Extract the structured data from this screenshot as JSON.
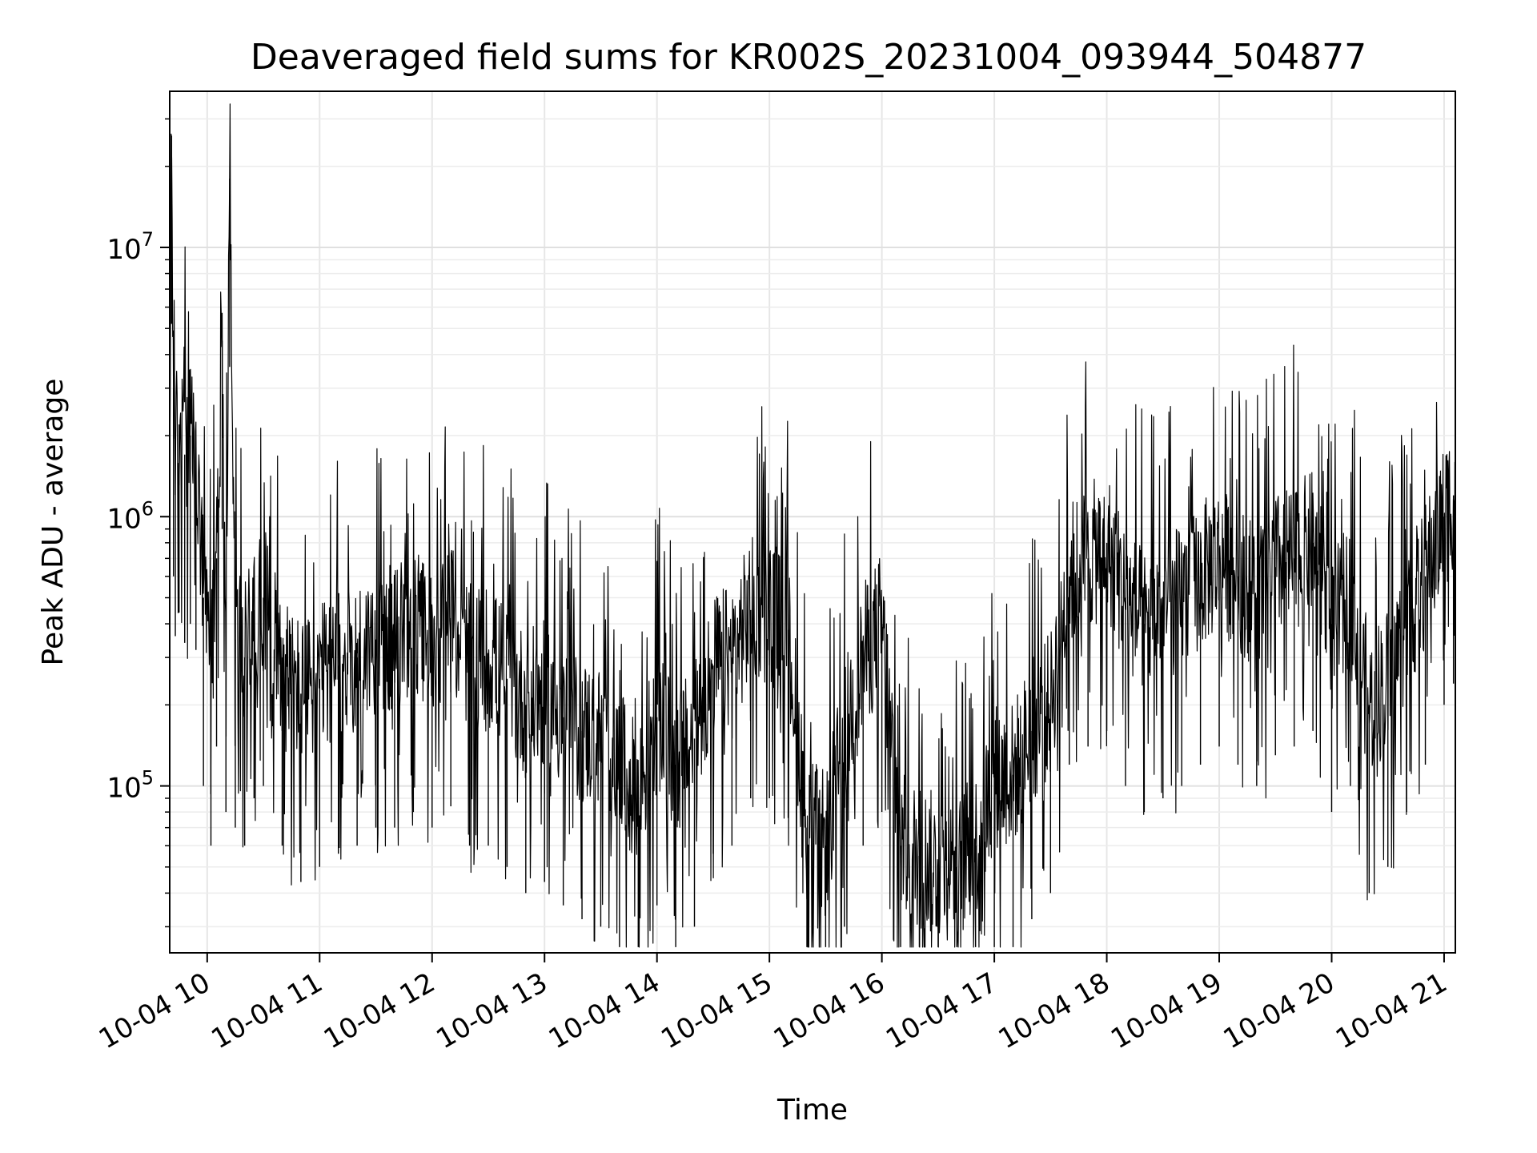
{
  "chart_data": {
    "type": "line",
    "title": "Deaveraged field sums for KR002S_20231004_093944_504877",
    "xlabel": "Time",
    "ylabel": "Peak ADU - average",
    "yscale": "log",
    "ylim": [
      24000,
      38000000
    ],
    "xlim": [
      "2023-10-04 09:40",
      "2023-10-04 21:06"
    ],
    "grid": true,
    "line_color": "#000000",
    "x_ticks": [
      "10-04 10",
      "10-04 11",
      "10-04 12",
      "10-04 13",
      "10-04 14",
      "10-04 15",
      "10-04 16",
      "10-04 17",
      "10-04 18",
      "10-04 19",
      "10-04 20",
      "10-04 21"
    ],
    "y_ticks": [
      {
        "value": 100000,
        "base": "10",
        "exp": "5"
      },
      {
        "value": 1000000,
        "base": "10",
        "exp": "6"
      },
      {
        "value": 10000000,
        "base": "10",
        "exp": "7"
      }
    ],
    "series": [
      {
        "x": [
          "2023-10-04 09:40",
          "2023-10-04 09:41",
          "2023-10-04 09:42",
          "2023-10-04 09:43",
          "2023-10-04 09:45",
          "2023-10-04 09:48",
          "2023-10-04 09:51",
          "2023-10-04 09:54",
          "2023-10-04 09:58",
          "2023-10-04 10:02",
          "2023-10-04 10:05",
          "2023-10-04 10:08",
          "2023-10-04 10:10",
          "2023-10-04 10:12",
          "2023-10-04 10:15",
          "2023-10-04 10:20",
          "2023-10-04 10:25",
          "2023-10-04 10:30",
          "2023-10-04 10:40",
          "2023-10-04 10:50",
          "2023-10-04 11:00",
          "2023-10-04 11:10",
          "2023-10-04 11:20",
          "2023-10-04 11:30",
          "2023-10-04 11:40",
          "2023-10-04 11:50",
          "2023-10-04 12:00",
          "2023-10-04 12:10",
          "2023-10-04 12:20",
          "2023-10-04 12:30",
          "2023-10-04 12:40",
          "2023-10-04 12:50",
          "2023-10-04 13:00",
          "2023-10-04 13:10",
          "2023-10-04 13:20",
          "2023-10-04 13:30",
          "2023-10-04 13:40",
          "2023-10-04 13:50",
          "2023-10-04 14:00",
          "2023-10-04 14:10",
          "2023-10-04 14:20",
          "2023-10-04 14:30",
          "2023-10-04 14:40",
          "2023-10-04 14:50",
          "2023-10-04 15:00",
          "2023-10-04 15:10",
          "2023-10-04 15:20",
          "2023-10-04 15:30",
          "2023-10-04 15:40",
          "2023-10-04 15:50",
          "2023-10-04 16:00",
          "2023-10-04 16:10",
          "2023-10-04 16:20",
          "2023-10-04 16:30",
          "2023-10-04 16:40",
          "2023-10-04 16:50",
          "2023-10-04 17:00",
          "2023-10-04 17:10",
          "2023-10-04 17:20",
          "2023-10-04 17:30",
          "2023-10-04 17:40",
          "2023-10-04 17:50",
          "2023-10-04 18:00",
          "2023-10-04 18:10",
          "2023-10-04 18:20",
          "2023-10-04 18:30",
          "2023-10-04 18:40",
          "2023-10-04 18:50",
          "2023-10-04 19:00",
          "2023-10-04 19:10",
          "2023-10-04 19:20",
          "2023-10-04 19:30",
          "2023-10-04 19:40",
          "2023-10-04 19:50",
          "2023-10-04 20:00",
          "2023-10-04 20:10",
          "2023-10-04 20:20",
          "2023-10-04 20:30",
          "2023-10-04 20:40",
          "2023-10-04 20:50",
          "2023-10-04 21:00",
          "2023-10-04 21:05"
        ],
        "values": [
          1500000,
          26000000,
          3000000,
          1800000,
          2200000,
          1700000,
          2000000,
          1600000,
          500000,
          300000,
          700000,
          4500000,
          400000,
          18000000,
          350000,
          300000,
          450000,
          500000,
          300000,
          220000,
          250000,
          280000,
          300000,
          350000,
          350000,
          400000,
          350000,
          420000,
          300000,
          300000,
          250000,
          200000,
          220000,
          180000,
          160000,
          150000,
          120000,
          90000,
          180000,
          120000,
          150000,
          280000,
          300000,
          450000,
          450000,
          380000,
          70000,
          60000,
          150000,
          300000,
          400000,
          60000,
          55000,
          50000,
          50000,
          60000,
          110000,
          110000,
          160000,
          200000,
          600000,
          700000,
          800000,
          500000,
          400000,
          450000,
          500000,
          600000,
          700000,
          600000,
          500000,
          650000,
          700000,
          800000,
          400000,
          500000,
          200000,
          250000,
          400000,
          600000,
          1000000,
          1200000
        ]
      }
    ]
  }
}
